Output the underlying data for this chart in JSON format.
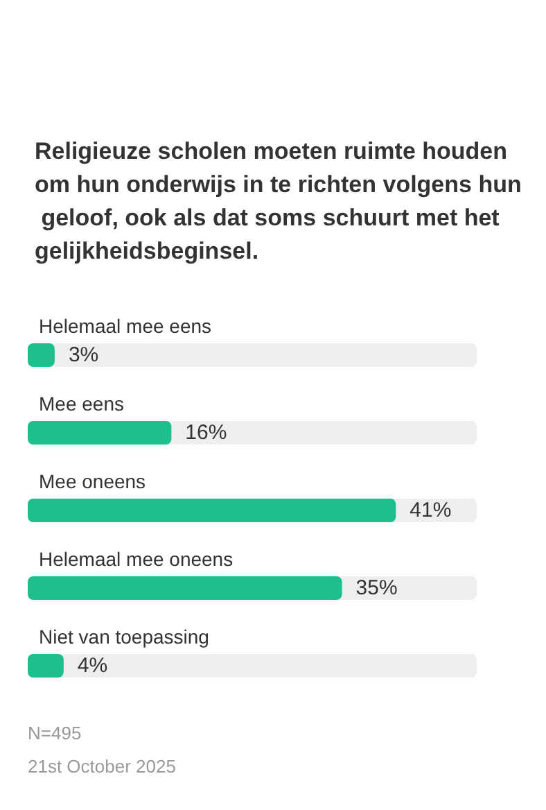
{
  "chart_data": {
    "type": "bar",
    "orientation": "horizontal",
    "title": "Religieuze scholen moeten ruimte houden om hun onderwijs in te richten volgens hun geloof, ook als dat soms schuurt met het gelijkheidsbeginsel.",
    "categories": [
      "Helemaal mee eens",
      "Mee eens",
      "Mee oneens",
      "Helemaal mee oneens",
      "Niet van toepassing"
    ],
    "values": [
      3,
      16,
      41,
      35,
      4
    ],
    "value_labels": [
      "3%",
      "16%",
      "41%",
      "35%",
      "4%"
    ],
    "color": "#1dbf8e",
    "tick_labels": "y",
    "annotations": [
      "N=495",
      "21st October 2025"
    ]
  }
}
